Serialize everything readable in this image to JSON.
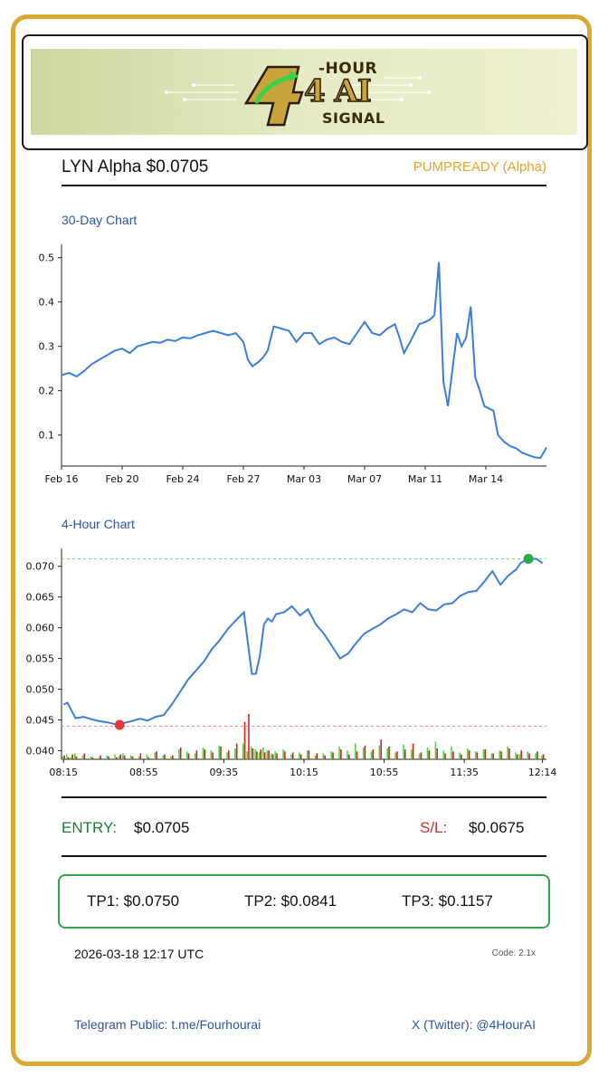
{
  "banner": {
    "logo_hour": "-HOUR",
    "logo_ai": "4 AI",
    "logo_signal": "SIGNAL"
  },
  "header": {
    "ticker": "LYN Alpha $0.0705",
    "status": "PUMPREADY (Alpha)"
  },
  "chart30": {
    "title": "30-Day Chart"
  },
  "chart4h": {
    "title": "4-Hour Chart"
  },
  "chart_data": [
    {
      "type": "line",
      "title": "30-Day Chart",
      "categories": [
        "Feb 16",
        "Feb 20",
        "Feb 24",
        "Feb 27",
        "Mar 03",
        "Mar 07",
        "Mar 11",
        "Mar 14"
      ],
      "y_ticks": [
        "0.1",
        "0.2",
        "0.3",
        "0.4",
        "0.5"
      ],
      "ylim": [
        0.03,
        0.53
      ],
      "xlim": [
        0,
        32
      ],
      "x_tick_positions": [
        0,
        4,
        8,
        12,
        16,
        20,
        24,
        28
      ],
      "x": [
        0,
        0.5,
        1,
        1.5,
        2,
        2.5,
        3,
        3.5,
        4,
        4.5,
        5,
        5.5,
        6,
        6.5,
        7,
        7.5,
        8,
        8.5,
        9,
        9.5,
        10,
        10.5,
        11,
        11.5,
        12,
        12.3,
        12.6,
        13,
        13.3,
        13.6,
        14,
        14.5,
        15,
        15.5,
        16,
        16.5,
        17,
        17.5,
        18,
        18.5,
        19,
        19.5,
        20,
        20.5,
        21,
        21.5,
        22,
        22.3,
        22.6,
        23,
        23.3,
        23.6,
        24,
        24.3,
        24.6,
        24.9,
        25.2,
        25.5,
        25.8,
        26.1,
        26.4,
        26.7,
        27,
        27.3,
        27.6,
        27.9,
        28.2,
        28.5,
        28.8,
        29.2,
        29.6,
        30,
        30.4,
        30.8,
        31.2,
        31.6,
        32
      ],
      "values": [
        0.235,
        0.24,
        0.232,
        0.245,
        0.26,
        0.27,
        0.28,
        0.29,
        0.295,
        0.285,
        0.3,
        0.305,
        0.31,
        0.308,
        0.315,
        0.312,
        0.32,
        0.318,
        0.325,
        0.33,
        0.335,
        0.33,
        0.325,
        0.33,
        0.31,
        0.27,
        0.255,
        0.265,
        0.275,
        0.29,
        0.345,
        0.34,
        0.335,
        0.31,
        0.33,
        0.33,
        0.305,
        0.315,
        0.32,
        0.31,
        0.305,
        0.33,
        0.355,
        0.33,
        0.325,
        0.34,
        0.35,
        0.32,
        0.285,
        0.31,
        0.33,
        0.35,
        0.355,
        0.36,
        0.37,
        0.49,
        0.22,
        0.165,
        0.25,
        0.33,
        0.3,
        0.32,
        0.39,
        0.23,
        0.2,
        0.165,
        0.16,
        0.155,
        0.1,
        0.085,
        0.075,
        0.07,
        0.06,
        0.055,
        0.05,
        0.048,
        0.072
      ]
    },
    {
      "type": "line",
      "title": "4-Hour Chart",
      "categories": [
        "08:15",
        "08:55",
        "09:35",
        "10:15",
        "10:55",
        "11:35",
        "12:14"
      ],
      "x_tick_positions": [
        0,
        40,
        80,
        120,
        160,
        200,
        239
      ],
      "y_ticks": [
        "0.040",
        "0.045",
        "0.050",
        "0.055",
        "0.060",
        "0.065",
        "0.070"
      ],
      "ylim": [
        0.0386,
        0.0729
      ],
      "xlim": [
        -1,
        241
      ],
      "x": [
        0,
        2,
        4,
        6,
        10,
        14,
        18,
        22,
        26,
        28,
        30,
        34,
        38,
        42,
        46,
        50,
        54,
        58,
        62,
        66,
        70,
        74,
        78,
        82,
        86,
        90,
        92,
        94,
        96,
        98,
        100,
        102,
        104,
        106,
        110,
        114,
        118,
        122,
        126,
        130,
        134,
        138,
        142,
        146,
        150,
        154,
        158,
        162,
        166,
        170,
        174,
        178,
        182,
        186,
        190,
        194,
        198,
        202,
        206,
        210,
        214,
        218,
        222,
        226,
        228,
        232,
        236,
        239
      ],
      "values": [
        0.0475,
        0.0478,
        0.0465,
        0.0453,
        0.0455,
        0.0451,
        0.0448,
        0.0446,
        0.0443,
        0.0442,
        0.0445,
        0.0448,
        0.0452,
        0.0449,
        0.0455,
        0.0458,
        0.0475,
        0.0495,
        0.0515,
        0.053,
        0.0545,
        0.0565,
        0.058,
        0.0598,
        0.0612,
        0.0625,
        0.0575,
        0.0525,
        0.0525,
        0.0555,
        0.0605,
        0.0615,
        0.061,
        0.0622,
        0.0625,
        0.0635,
        0.062,
        0.063,
        0.0605,
        0.059,
        0.057,
        0.055,
        0.0558,
        0.0575,
        0.059,
        0.0598,
        0.0605,
        0.0615,
        0.0622,
        0.063,
        0.0625,
        0.064,
        0.063,
        0.0628,
        0.0638,
        0.064,
        0.0652,
        0.0658,
        0.066,
        0.0675,
        0.0692,
        0.067,
        0.0685,
        0.0695,
        0.0705,
        0.0712,
        0.0712,
        0.0705
      ],
      "volumes_buy": [
        0.3,
        0.5,
        0.2,
        0.6,
        0.4,
        0.3,
        0.2,
        0.4,
        0.5,
        0.3,
        0.6,
        0.4,
        0.3,
        0.5,
        0.7,
        0.4,
        0.3,
        1.0,
        0.8,
        0.6,
        1.2,
        0.9,
        1.4,
        0.7,
        1.1,
        1.6,
        0.8,
        1.3,
        1.0,
        0.7,
        1.2,
        0.9,
        0.6,
        0.8,
        1.0,
        0.5,
        0.7,
        0.9,
        0.4,
        0.6,
        0.8,
        1.3,
        0.9,
        1.6,
        1.2,
        0.8,
        1.4,
        1.1,
        0.7,
        1.5,
        1.0,
        0.6,
        1.2,
        1.8,
        0.9,
        1.3,
        0.7,
        1.1,
        0.8,
        1.0,
        0.6,
        0.9,
        1.3,
        0.7,
        0.5,
        0.8,
        0.6,
        0.4
      ],
      "volumes_sell": [
        0.4,
        0.2,
        0.5,
        0.3,
        0.6,
        0.2,
        0.4,
        0.3,
        0.2,
        0.5,
        0.4,
        0.3,
        0.6,
        0.2,
        0.8,
        0.5,
        0.4,
        1.2,
        0.6,
        0.9,
        1.0,
        0.7,
        1.3,
        0.9,
        1.6,
        3.8,
        4.6,
        1.1,
        0.8,
        1.0,
        0.7,
        0.9,
        0.5,
        0.6,
        0.8,
        0.7,
        0.5,
        0.9,
        0.6,
        0.4,
        0.7,
        1.0,
        0.5,
        0.8,
        1.4,
        1.0,
        2.0,
        1.3,
        0.8,
        1.0,
        1.6,
        0.7,
        0.9,
        1.1,
        0.6,
        0.8,
        0.5,
        0.9,
        0.7,
        1.0,
        0.6,
        0.8,
        1.1,
        0.5,
        0.9,
        0.6,
        0.8,
        0.5
      ],
      "entry_marker": {
        "x": 232,
        "y": 0.0712
      },
      "stop_marker": {
        "x": 28,
        "y": 0.0442
      },
      "target_line": 0.0712,
      "stop_line": 0.044,
      "colors": {
        "line": "#3b7de0",
        "buy": "#3ee03e",
        "sell": "#d62020",
        "entry": "#2ea84a",
        "stop": "#e53935"
      }
    }
  ],
  "signal": {
    "entry_label": "ENTRY:",
    "entry_value": "$0.0705",
    "sl_label": "S/L:",
    "sl_value": "$0.0675"
  },
  "targets": {
    "tp1": "TP1: $0.0750",
    "tp2": "TP2: $0.0841",
    "tp3": "TP3: $0.1157"
  },
  "meta": {
    "timestamp": "2026-03-18 12:17 UTC",
    "code": "Code: 2.1x"
  },
  "footer": {
    "telegram": "Telegram Public: t.me/Fourhourai",
    "twitter": "X (Twitter): @4HourAI"
  },
  "colors": {
    "frame": "#d8aa35",
    "status": "#e3a42a",
    "title_blue": "#2e54a6",
    "entry_green": "#1e7e34",
    "sl_red": "#d32f2f",
    "tp_border": "#2ea84a"
  }
}
